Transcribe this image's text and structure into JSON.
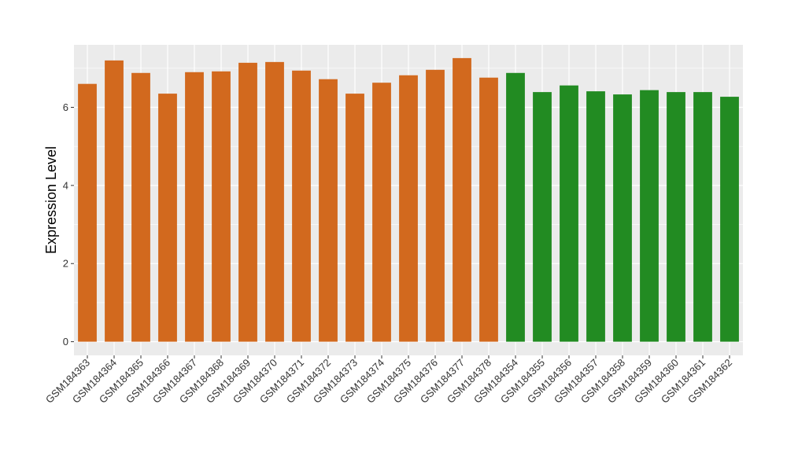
{
  "chart_data": {
    "type": "bar",
    "title": "",
    "xlabel": "",
    "ylabel": "Expression Level",
    "ylim": [
      -0.35,
      7.6
    ],
    "yticks": [
      0,
      2,
      4,
      6
    ],
    "grid": true,
    "legend": "none",
    "colors": {
      "group_a": "#d2691e",
      "group_b": "#228b22",
      "panel_bg": "#ebebeb",
      "grid": "#ffffff"
    },
    "categories": [
      "GSM184363",
      "GSM184364",
      "GSM184365",
      "GSM184366",
      "GSM184367",
      "GSM184368",
      "GSM184369",
      "GSM184370",
      "GSM184371",
      "GSM184372",
      "GSM184373",
      "GSM184374",
      "GSM184375",
      "GSM184376",
      "GSM184377",
      "GSM184378",
      "GSM184354",
      "GSM184355",
      "GSM184356",
      "GSM184357",
      "GSM184358",
      "GSM184359",
      "GSM184360",
      "GSM184361",
      "GSM184362"
    ],
    "values": [
      6.6,
      7.2,
      6.88,
      6.35,
      6.9,
      6.92,
      7.14,
      7.16,
      6.94,
      6.72,
      6.35,
      6.63,
      6.82,
      6.96,
      7.26,
      6.76,
      6.88,
      6.39,
      6.56,
      6.41,
      6.33,
      6.44,
      6.39,
      6.39,
      6.27
    ],
    "groups": [
      "a",
      "a",
      "a",
      "a",
      "a",
      "a",
      "a",
      "a",
      "a",
      "a",
      "a",
      "a",
      "a",
      "a",
      "a",
      "a",
      "b",
      "b",
      "b",
      "b",
      "b",
      "b",
      "b",
      "b",
      "b"
    ]
  }
}
